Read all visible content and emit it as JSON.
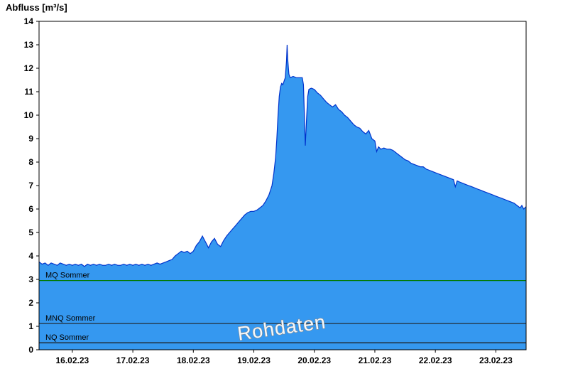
{
  "title": "Abfluss [m³/s]",
  "watermark": "Rohdaten",
  "colors": {
    "fill": "#3598F0",
    "stroke": "#0033CC",
    "mq": "#007A00",
    "mnq": "#202020",
    "nq": "#1C1C1C",
    "axis": "#000000",
    "watermark_fill": "#FFFFFF",
    "watermark_outline": "#8A8A8A"
  },
  "chart_data": {
    "type": "area",
    "title": "Abfluss [m³/s]",
    "xlabel": "",
    "ylabel": "Abfluss [m³/s]",
    "ylim": [
      0,
      14
    ],
    "x_range": [
      15.45,
      23.5
    ],
    "grid": false,
    "y_ticks": [
      0,
      1,
      2,
      3,
      4,
      5,
      6,
      7,
      8,
      9,
      10,
      11,
      12,
      13,
      14
    ],
    "x_ticks": [
      {
        "day": 16,
        "label": "16.02.23"
      },
      {
        "day": 17,
        "label": "17.02.23"
      },
      {
        "day": 18,
        "label": "18.02.23"
      },
      {
        "day": 19,
        "label": "19.02.23"
      },
      {
        "day": 20,
        "label": "20.02.23"
      },
      {
        "day": 21,
        "label": "21.02.23"
      },
      {
        "day": 22,
        "label": "22.02.23"
      },
      {
        "day": 23,
        "label": "23.02.23"
      }
    ],
    "series_name": "Abfluss Rohdaten",
    "reference_lines": [
      {
        "label": "MQ Sommer",
        "value": 2.95,
        "color_key": "mq"
      },
      {
        "label": "MNQ Sommer",
        "value": 1.12,
        "color_key": "mnq"
      },
      {
        "label": "NQ Sommer",
        "value": 0.3,
        "color_key": "nq"
      }
    ],
    "points": [
      [
        15.45,
        3.75
      ],
      [
        15.5,
        3.65
      ],
      [
        15.55,
        3.7
      ],
      [
        15.6,
        3.6
      ],
      [
        15.65,
        3.7
      ],
      [
        15.7,
        3.65
      ],
      [
        15.75,
        3.6
      ],
      [
        15.8,
        3.7
      ],
      [
        15.85,
        3.65
      ],
      [
        15.9,
        3.6
      ],
      [
        15.95,
        3.65
      ],
      [
        16.0,
        3.6
      ],
      [
        16.05,
        3.65
      ],
      [
        16.1,
        3.6
      ],
      [
        16.15,
        3.65
      ],
      [
        16.2,
        3.55
      ],
      [
        16.25,
        3.65
      ],
      [
        16.3,
        3.6
      ],
      [
        16.35,
        3.65
      ],
      [
        16.4,
        3.6
      ],
      [
        16.45,
        3.65
      ],
      [
        16.5,
        3.6
      ],
      [
        16.55,
        3.6
      ],
      [
        16.6,
        3.65
      ],
      [
        16.65,
        3.6
      ],
      [
        16.7,
        3.65
      ],
      [
        16.75,
        3.6
      ],
      [
        16.8,
        3.6
      ],
      [
        16.85,
        3.65
      ],
      [
        16.9,
        3.6
      ],
      [
        16.95,
        3.65
      ],
      [
        17.0,
        3.6
      ],
      [
        17.05,
        3.65
      ],
      [
        17.1,
        3.6
      ],
      [
        17.15,
        3.65
      ],
      [
        17.2,
        3.6
      ],
      [
        17.25,
        3.65
      ],
      [
        17.3,
        3.6
      ],
      [
        17.35,
        3.65
      ],
      [
        17.4,
        3.7
      ],
      [
        17.45,
        3.65
      ],
      [
        17.5,
        3.7
      ],
      [
        17.55,
        3.75
      ],
      [
        17.6,
        3.8
      ],
      [
        17.65,
        3.85
      ],
      [
        17.7,
        4.0
      ],
      [
        17.75,
        4.1
      ],
      [
        17.8,
        4.2
      ],
      [
        17.85,
        4.15
      ],
      [
        17.9,
        4.2
      ],
      [
        17.95,
        4.1
      ],
      [
        18.0,
        4.2
      ],
      [
        18.05,
        4.45
      ],
      [
        18.1,
        4.6
      ],
      [
        18.15,
        4.85
      ],
      [
        18.18,
        4.7
      ],
      [
        18.22,
        4.5
      ],
      [
        18.25,
        4.35
      ],
      [
        18.3,
        4.6
      ],
      [
        18.35,
        4.75
      ],
      [
        18.4,
        4.5
      ],
      [
        18.45,
        4.4
      ],
      [
        18.5,
        4.65
      ],
      [
        18.55,
        4.85
      ],
      [
        18.6,
        5.0
      ],
      [
        18.65,
        5.15
      ],
      [
        18.7,
        5.3
      ],
      [
        18.75,
        5.45
      ],
      [
        18.8,
        5.6
      ],
      [
        18.85,
        5.75
      ],
      [
        18.9,
        5.85
      ],
      [
        18.95,
        5.9
      ],
      [
        19.0,
        5.9
      ],
      [
        19.05,
        5.95
      ],
      [
        19.1,
        6.05
      ],
      [
        19.15,
        6.15
      ],
      [
        19.2,
        6.35
      ],
      [
        19.25,
        6.6
      ],
      [
        19.3,
        7.0
      ],
      [
        19.33,
        7.5
      ],
      [
        19.36,
        8.2
      ],
      [
        19.38,
        9.0
      ],
      [
        19.4,
        10.0
      ],
      [
        19.42,
        10.8
      ],
      [
        19.44,
        11.2
      ],
      [
        19.46,
        11.35
      ],
      [
        19.48,
        11.3
      ],
      [
        19.5,
        11.45
      ],
      [
        19.52,
        11.6
      ],
      [
        19.54,
        12.3
      ],
      [
        19.55,
        13.0
      ],
      [
        19.56,
        12.4
      ],
      [
        19.58,
        11.75
      ],
      [
        19.6,
        11.6
      ],
      [
        19.65,
        11.65
      ],
      [
        19.7,
        11.6
      ],
      [
        19.75,
        11.6
      ],
      [
        19.8,
        11.6
      ],
      [
        19.82,
        11.3
      ],
      [
        19.84,
        9.6
      ],
      [
        19.85,
        8.7
      ],
      [
        19.87,
        9.8
      ],
      [
        19.89,
        10.8
      ],
      [
        19.91,
        11.1
      ],
      [
        19.95,
        11.15
      ],
      [
        20.0,
        11.1
      ],
      [
        20.05,
        10.95
      ],
      [
        20.1,
        10.85
      ],
      [
        20.15,
        10.7
      ],
      [
        20.2,
        10.55
      ],
      [
        20.25,
        10.45
      ],
      [
        20.3,
        10.35
      ],
      [
        20.35,
        10.45
      ],
      [
        20.4,
        10.25
      ],
      [
        20.45,
        10.15
      ],
      [
        20.5,
        10.0
      ],
      [
        20.55,
        9.9
      ],
      [
        20.6,
        9.75
      ],
      [
        20.65,
        9.6
      ],
      [
        20.7,
        9.5
      ],
      [
        20.75,
        9.45
      ],
      [
        20.8,
        9.3
      ],
      [
        20.85,
        9.2
      ],
      [
        20.9,
        9.35
      ],
      [
        20.95,
        9.0
      ],
      [
        21.0,
        8.9
      ],
      [
        21.03,
        8.45
      ],
      [
        21.06,
        8.65
      ],
      [
        21.1,
        8.55
      ],
      [
        21.15,
        8.6
      ],
      [
        21.2,
        8.55
      ],
      [
        21.25,
        8.55
      ],
      [
        21.3,
        8.5
      ],
      [
        21.35,
        8.4
      ],
      [
        21.4,
        8.3
      ],
      [
        21.45,
        8.2
      ],
      [
        21.5,
        8.1
      ],
      [
        21.55,
        8.05
      ],
      [
        21.6,
        7.95
      ],
      [
        21.65,
        7.9
      ],
      [
        21.7,
        7.85
      ],
      [
        21.75,
        7.8
      ],
      [
        21.8,
        7.8
      ],
      [
        21.85,
        7.7
      ],
      [
        21.9,
        7.65
      ],
      [
        21.95,
        7.6
      ],
      [
        22.0,
        7.55
      ],
      [
        22.05,
        7.5
      ],
      [
        22.1,
        7.45
      ],
      [
        22.15,
        7.4
      ],
      [
        22.2,
        7.35
      ],
      [
        22.25,
        7.3
      ],
      [
        22.3,
        7.25
      ],
      [
        22.33,
        6.95
      ],
      [
        22.36,
        7.2
      ],
      [
        22.4,
        7.15
      ],
      [
        22.45,
        7.1
      ],
      [
        22.5,
        7.05
      ],
      [
        22.55,
        7.0
      ],
      [
        22.6,
        6.95
      ],
      [
        22.65,
        6.9
      ],
      [
        22.7,
        6.85
      ],
      [
        22.75,
        6.8
      ],
      [
        22.8,
        6.75
      ],
      [
        22.85,
        6.7
      ],
      [
        22.9,
        6.65
      ],
      [
        22.95,
        6.6
      ],
      [
        23.0,
        6.55
      ],
      [
        23.05,
        6.5
      ],
      [
        23.1,
        6.45
      ],
      [
        23.15,
        6.4
      ],
      [
        23.2,
        6.35
      ],
      [
        23.25,
        6.3
      ],
      [
        23.3,
        6.25
      ],
      [
        23.35,
        6.15
      ],
      [
        23.4,
        6.05
      ],
      [
        23.43,
        6.15
      ],
      [
        23.46,
        6.0
      ],
      [
        23.5,
        6.1
      ]
    ]
  }
}
